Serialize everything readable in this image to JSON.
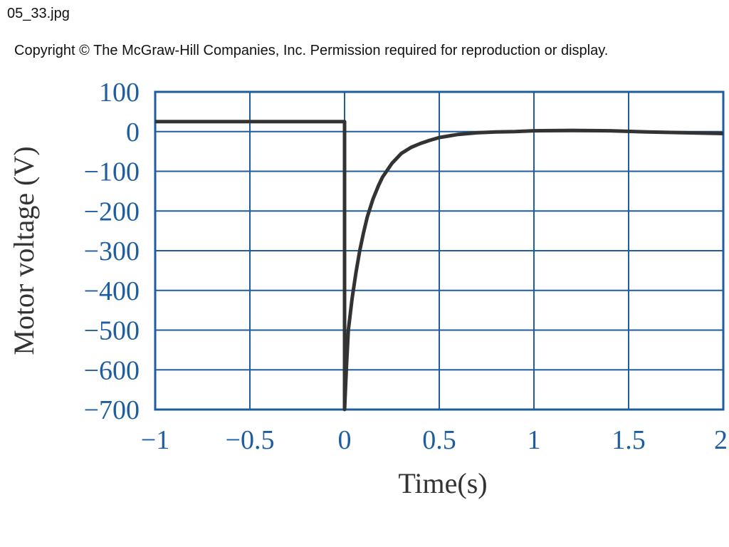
{
  "file_name": "05_33.jpg",
  "copyright": "Copyright © The McGraw-Hill Companies, Inc. Permission required for reproduction or display.",
  "colors": {
    "grid": "#1e5ea0",
    "curve": "#333333",
    "text": "#1e5ea0"
  },
  "chart_data": {
    "type": "line",
    "title": "",
    "xlabel": "Time(s)",
    "ylabel": "Motor voltage (V)",
    "xlim": [
      -1,
      2
    ],
    "ylim": [
      -700,
      100
    ],
    "grid": true,
    "x_ticks": [
      -1,
      -0.5,
      0,
      0.5,
      1,
      1.5,
      2
    ],
    "x_tick_labels": [
      "−1",
      "−0.5",
      "0",
      "0.5",
      "1",
      "1.5",
      "2"
    ],
    "y_ticks": [
      100,
      0,
      -100,
      -200,
      -300,
      -400,
      -500,
      -600,
      -700
    ],
    "y_tick_labels": [
      "100",
      "0",
      "−100",
      "−200",
      "−300",
      "−400",
      "−500",
      "−600",
      "−700"
    ],
    "series": [
      {
        "x": [
          -1,
          -0.5,
          0,
          0,
          0.01,
          0.02,
          0.04,
          0.06,
          0.08,
          0.1,
          0.12,
          0.15,
          0.18,
          0.2,
          0.25,
          0.3,
          0.35,
          0.4,
          0.45,
          0.5,
          0.6,
          0.7,
          0.8,
          0.9,
          1.0,
          1.2,
          1.4,
          1.6,
          1.8,
          2.0
        ],
        "y": [
          25,
          25,
          25,
          -700,
          -590,
          -500,
          -420,
          -355,
          -300,
          -255,
          -215,
          -170,
          -135,
          -115,
          -80,
          -55,
          -40,
          -30,
          -22,
          -15,
          -7,
          -3,
          -1,
          0,
          2,
          3,
          2,
          -1,
          -3,
          -5
        ]
      }
    ]
  }
}
